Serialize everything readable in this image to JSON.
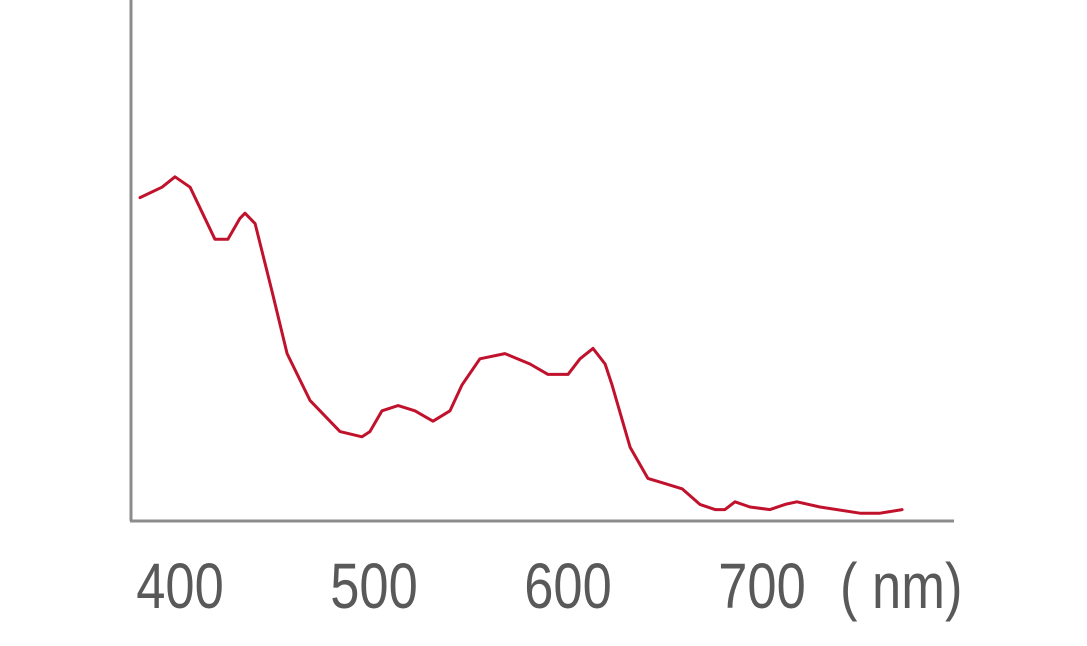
{
  "chart_data": {
    "type": "line",
    "title": "",
    "xlabel": "( nm)",
    "ylabel": "",
    "xlim": [
      375,
      795
    ],
    "ylim": [
      0,
      1
    ],
    "grid": false,
    "x_ticks": [
      400,
      500,
      600,
      700
    ],
    "x_tick_labels": [
      "400",
      "500",
      "600",
      "700"
    ],
    "colors": {
      "line": "#c0122c",
      "axis": "#8c8c8c",
      "text": "#595959"
    },
    "series": [
      {
        "x": [
          379.4,
          390.7,
          397.4,
          405.2,
          418,
          424.7,
          430.9,
          433.5,
          438.7,
          447.4,
          455.2,
          467,
          482.5,
          493.8,
          497.9,
          504.1,
          512.4,
          521.1,
          530.4,
          539.2,
          545.4,
          554.6,
          567.5,
          580.4,
          589.7,
          600,
          606.2,
          612.9,
          619.1,
          622.7,
          632,
          641.2,
          650,
          658.8,
          668,
          675.8,
          680.9,
          686.1,
          693.8,
          704.1,
          711.9,
          718,
          729.9,
          750.5,
          760.8,
          772.2
        ],
        "y": [
          0.62,
          0.64,
          0.66,
          0.64,
          0.54,
          0.54,
          0.58,
          0.59,
          0.57,
          0.44,
          0.32,
          0.23,
          0.17,
          0.16,
          0.17,
          0.21,
          0.22,
          0.21,
          0.19,
          0.21,
          0.26,
          0.31,
          0.32,
          0.3,
          0.28,
          0.28,
          0.31,
          0.33,
          0.3,
          0.26,
          0.14,
          0.08,
          0.07,
          0.06,
          0.03,
          0.02,
          0.02,
          0.035,
          0.025,
          0.02,
          0.03,
          0.035,
          0.025,
          0.013,
          0.013,
          0.02
        ]
      }
    ]
  }
}
